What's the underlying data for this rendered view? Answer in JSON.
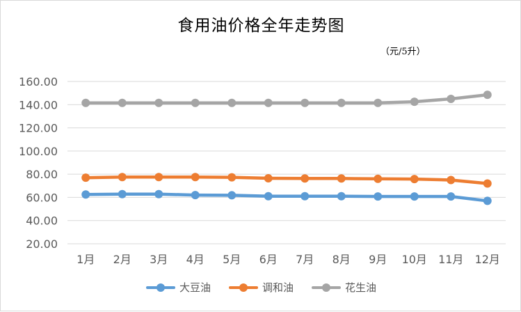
{
  "chart_data": {
    "type": "line",
    "title": "食用油价格全年走势图",
    "unit": "（元/5升）",
    "categories": [
      "1月",
      "2月",
      "3月",
      "4月",
      "5月",
      "6月",
      "7月",
      "8月",
      "9月",
      "10月",
      "11月",
      "12月"
    ],
    "ylim": [
      20,
      160
    ],
    "yticks": [
      "20.00",
      "40.00",
      "60.00",
      "80.00",
      "100.00",
      "120.00",
      "140.00",
      "160.00"
    ],
    "grid": true,
    "legend_position": "bottom",
    "series": [
      {
        "name": "大豆油",
        "color": "#5b9bd5",
        "values": [
          62.5,
          62.8,
          62.8,
          62.0,
          61.8,
          61.0,
          61.0,
          61.0,
          60.8,
          60.8,
          60.8,
          57.0
        ]
      },
      {
        "name": "调和油",
        "color": "#ed7d31",
        "values": [
          77.0,
          77.5,
          77.5,
          77.5,
          77.3,
          76.5,
          76.3,
          76.3,
          76.0,
          75.8,
          75.0,
          72.0
        ]
      },
      {
        "name": "花生油",
        "color": "#a5a5a5",
        "values": [
          141.5,
          141.5,
          141.5,
          141.5,
          141.5,
          141.5,
          141.5,
          141.5,
          141.5,
          142.5,
          145.0,
          148.5
        ]
      }
    ]
  }
}
